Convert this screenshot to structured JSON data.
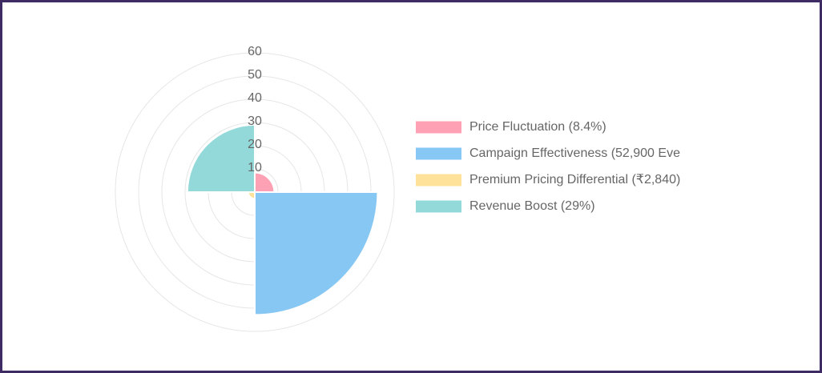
{
  "chart_data": {
    "type": "polarArea",
    "categories": [
      "Price Fluctuation (8.4%)",
      "Campaign Effectiveness (52,900 Eve",
      "Premium Pricing Differential (₹2,840)",
      "Revenue Boost (29%)"
    ],
    "values": [
      8.4,
      52.9,
      2.84,
      29
    ],
    "colors": [
      "#ffa1b5",
      "#86c7f3",
      "#ffe29a",
      "#93d9d9"
    ],
    "ylim": [
      0,
      60
    ],
    "yticks": [
      10,
      20,
      30,
      40,
      50,
      60
    ],
    "grid": true,
    "legend": "right"
  }
}
